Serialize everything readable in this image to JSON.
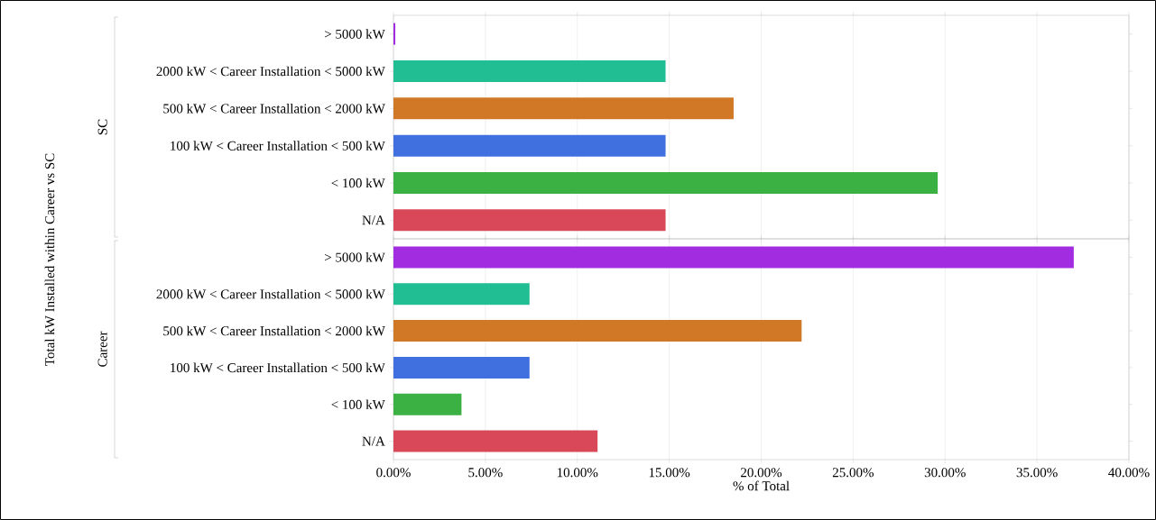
{
  "chart_data": [
    {
      "type": "bar",
      "orientation": "horizontal",
      "ylabel": "SC",
      "categories": [
        "> 5000 kW",
        "2000 kW < Career Installation < 5000 kW",
        "500 kW < Career Installation < 2000 kW",
        "100 kW < Career Installation < 500 kW",
        "< 100 kW",
        "N/A"
      ],
      "values": [
        0.1,
        14.8,
        18.5,
        14.8,
        29.6,
        14.8
      ],
      "colors": [
        "#a22cdf",
        "#22be93",
        "#d07826",
        "#4070e0",
        "#3bb143",
        "#d84858"
      ],
      "xlim": [
        0,
        40
      ],
      "xticks": [
        {
          "value": 0,
          "label": null
        },
        {
          "value": 5,
          "label": null
        },
        {
          "value": 10,
          "label": null
        },
        {
          "value": 15,
          "label": null
        },
        {
          "value": 20,
          "label": null
        },
        {
          "value": 25,
          "label": null
        },
        {
          "value": 30,
          "label": null
        },
        {
          "value": 35,
          "label": null
        },
        {
          "value": 40,
          "label": null
        }
      ],
      "grid": "x",
      "tick_labels": "y"
    },
    {
      "type": "bar",
      "orientation": "horizontal",
      "ylabel": "Career",
      "xlabel": "% of Total",
      "annotations": [
        "Total kW Installed within Career vs SC"
      ],
      "categories": [
        "> 5000 kW",
        "2000 kW < Career Installation < 5000 kW",
        "500 kW < Career Installation < 2000 kW",
        "100 kW < Career Installation < 500 kW",
        "< 100 kW",
        "N/A"
      ],
      "values": [
        37.0,
        7.4,
        22.2,
        7.4,
        3.7,
        11.1
      ],
      "colors": [
        "#a22cdf",
        "#22be93",
        "#d07826",
        "#4070e0",
        "#3bb143",
        "#d84858"
      ],
      "xlim": [
        0,
        40
      ],
      "xticks": [
        {
          "value": 0,
          "label": "0.00%"
        },
        {
          "value": 5,
          "label": "5.00%"
        },
        {
          "value": 10,
          "label": "10.00%"
        },
        {
          "value": 15,
          "label": "15.00%"
        },
        {
          "value": 20,
          "label": "20.00%"
        },
        {
          "value": 25,
          "label": "25.00%"
        },
        {
          "value": 30,
          "label": "30.00%"
        },
        {
          "value": 35,
          "label": "35.00%"
        },
        {
          "value": 40,
          "label": "40.00%"
        }
      ],
      "grid": "x"
    }
  ]
}
